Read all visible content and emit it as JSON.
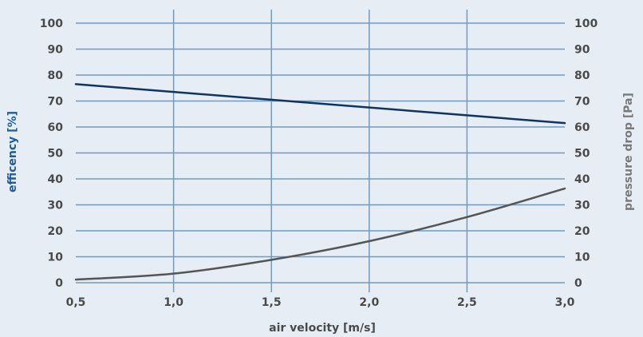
{
  "chart_data": {
    "type": "line",
    "xlabel": "air velocity [m/s]",
    "ylabel_left": "efficency [%]",
    "ylabel_right": "pressure drop [Pa]",
    "xlim": [
      0.5,
      3.0
    ],
    "ylim_left": [
      0,
      100
    ],
    "ylim_right": [
      0,
      100
    ],
    "x_ticks": [
      "0,5",
      "1,0",
      "1,5",
      "2,0",
      "2,5",
      "3,0"
    ],
    "y_ticks_left": [
      "0",
      "10",
      "20",
      "30",
      "40",
      "50",
      "60",
      "70",
      "80",
      "90",
      "100"
    ],
    "y_ticks_right": [
      "0",
      "10",
      "20",
      "30",
      "40",
      "50",
      "60",
      "70",
      "80",
      "90",
      "100"
    ],
    "grid": true,
    "x": [
      0.5,
      1.0,
      1.5,
      2.0,
      2.5,
      3.0
    ],
    "series": [
      {
        "axis": "left",
        "color": "#0f3461",
        "values": [
          76.5,
          73.5,
          70.5,
          67.5,
          64.5,
          61.5
        ]
      },
      {
        "axis": "right",
        "color": "#555555",
        "values": [
          1.2,
          3.5,
          8.8,
          16.0,
          25.3,
          36.3
        ]
      }
    ],
    "colors": {
      "grid": "#6f9bc4",
      "left_label": "#1f5c9a",
      "right_label": "#7a7a7a",
      "tick": "#4a4a4a"
    }
  }
}
